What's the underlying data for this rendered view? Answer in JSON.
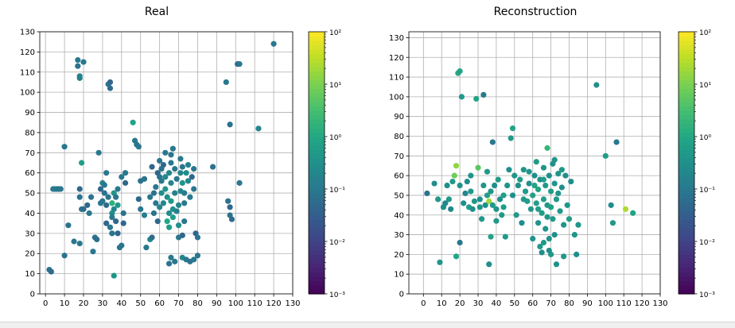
{
  "chart_data": [
    {
      "type": "scatter",
      "title": "Real",
      "xlabel": "",
      "ylabel": "",
      "xlim": [
        -3,
        130
      ],
      "ylim": [
        0,
        130
      ],
      "xticks": [
        0,
        10,
        20,
        30,
        40,
        50,
        60,
        70,
        80,
        90,
        100,
        110,
        120,
        130
      ],
      "yticks": [
        0,
        10,
        20,
        30,
        40,
        50,
        60,
        70,
        80,
        90,
        100,
        110,
        120,
        130
      ],
      "grid": true,
      "colorbar": {
        "scale": "log",
        "min": 0.001,
        "max": 100,
        "ticks": [
          "10⁻³",
          "10⁻²",
          "10⁻¹",
          "10⁰",
          "10¹",
          "10²"
        ]
      },
      "points": [
        [
          2,
          12,
          0.08
        ],
        [
          3,
          11,
          0.06
        ],
        [
          4,
          52,
          0.1
        ],
        [
          5,
          52,
          0.12
        ],
        [
          6,
          52,
          0.1
        ],
        [
          7,
          52,
          0.08
        ],
        [
          8,
          52,
          0.1
        ],
        [
          10,
          73,
          0.1
        ],
        [
          10,
          19,
          0.08
        ],
        [
          12,
          34,
          0.08
        ],
        [
          15,
          26,
          0.1
        ],
        [
          17,
          116,
          0.1
        ],
        [
          17,
          113,
          0.08
        ],
        [
          18,
          108,
          0.2
        ],
        [
          18,
          107,
          0.15
        ],
        [
          20,
          115,
          0.1
        ],
        [
          18,
          52,
          0.05
        ],
        [
          18,
          48,
          0.08
        ],
        [
          19,
          42,
          0.1
        ],
        [
          19,
          65,
          0.6
        ],
        [
          18,
          25,
          0.1
        ],
        [
          20,
          42,
          0.06
        ],
        [
          22,
          44,
          0.05
        ],
        [
          23,
          40,
          0.1
        ],
        [
          24,
          48,
          0.08
        ],
        [
          25,
          21,
          0.1
        ],
        [
          26,
          28,
          0.08
        ],
        [
          27,
          27,
          0.06
        ],
        [
          28,
          70,
          0.1
        ],
        [
          29,
          52,
          0.05
        ],
        [
          29,
          45,
          0.1
        ],
        [
          30,
          46,
          0.08
        ],
        [
          30,
          55,
          0.15
        ],
        [
          31,
          54,
          0.1
        ],
        [
          31,
          50,
          0.08
        ],
        [
          32,
          44,
          0.05
        ],
        [
          32,
          60,
          0.1
        ],
        [
          32,
          35,
          0.05
        ],
        [
          33,
          48,
          0.08
        ],
        [
          33,
          104,
          0.08
        ],
        [
          34,
          105,
          0.05
        ],
        [
          34,
          102,
          0.06
        ],
        [
          34,
          33,
          0.1
        ],
        [
          35,
          45,
          1.5
        ],
        [
          35,
          40,
          0.3
        ],
        [
          35,
          38,
          0.1
        ],
        [
          36,
          50,
          0.4
        ],
        [
          36,
          42,
          0.2
        ],
        [
          37,
          48,
          0.1
        ],
        [
          37,
          36,
          0.05
        ],
        [
          38,
          44,
          0.5
        ],
        [
          38,
          52,
          0.1
        ],
        [
          38,
          30,
          0.05
        ],
        [
          35,
          30,
          0.08
        ],
        [
          36,
          9,
          0.4
        ],
        [
          40,
          24,
          0.1
        ],
        [
          39,
          23,
          0.08
        ],
        [
          40,
          58,
          0.1
        ],
        [
          42,
          55,
          0.05
        ],
        [
          42,
          60,
          0.1
        ],
        [
          41,
          40,
          0.08
        ],
        [
          41,
          35,
          0.05
        ],
        [
          46,
          85,
          0.8
        ],
        [
          47,
          76,
          0.1
        ],
        [
          48,
          74,
          0.08
        ],
        [
          49,
          73,
          0.1
        ],
        [
          49,
          47,
          0.05
        ],
        [
          50,
          42,
          0.1
        ],
        [
          50,
          56,
          0.08
        ],
        [
          52,
          39,
          0.15
        ],
        [
          52,
          57,
          0.08
        ],
        [
          53,
          23,
          0.1
        ],
        [
          55,
          48,
          0.1
        ],
        [
          55,
          27,
          0.2
        ],
        [
          56,
          28,
          0.06
        ],
        [
          57,
          50,
          0.08
        ],
        [
          58,
          53,
          0.1
        ],
        [
          59,
          60,
          0.05
        ],
        [
          60,
          66,
          0.1
        ],
        [
          60,
          58,
          0.08
        ],
        [
          61,
          50,
          0.3
        ],
        [
          61,
          56,
          0.1
        ],
        [
          62,
          45,
          0.2
        ],
        [
          62,
          64,
          0.05
        ],
        [
          63,
          70,
          0.1
        ],
        [
          63,
          52,
          0.4
        ],
        [
          64,
          48,
          0.3
        ],
        [
          64,
          36,
          1.0
        ],
        [
          65,
          33,
          0.6
        ],
        [
          65,
          40,
          0.3
        ],
        [
          65,
          60,
          0.2
        ],
        [
          66,
          55,
          0.2
        ],
        [
          66,
          65,
          0.1
        ],
        [
          66,
          46,
          0.5
        ],
        [
          67,
          72,
          0.1
        ],
        [
          67,
          42,
          0.3
        ],
        [
          68,
          50,
          0.15
        ],
        [
          68,
          62,
          0.1
        ],
        [
          69,
          57,
          0.1
        ],
        [
          70,
          44,
          0.2
        ],
        [
          70,
          34,
          0.3
        ],
        [
          70,
          28,
          0.1
        ],
        [
          71,
          60,
          0.2
        ],
        [
          71,
          67,
          0.1
        ],
        [
          72,
          55,
          0.4
        ],
        [
          72,
          63,
          0.1
        ],
        [
          73,
          50,
          0.1
        ],
        [
          74,
          60,
          0.3
        ],
        [
          75,
          64,
          0.15
        ],
        [
          75,
          56,
          0.2
        ],
        [
          76,
          48,
          0.1
        ],
        [
          77,
          58,
          0.05
        ],
        [
          78,
          52,
          0.1
        ],
        [
          78,
          62,
          0.1
        ],
        [
          79,
          30,
          0.05
        ],
        [
          80,
          28,
          0.08
        ],
        [
          73,
          36,
          0.1
        ],
        [
          72,
          29,
          0.05
        ],
        [
          68,
          16,
          0.1
        ],
        [
          65,
          15,
          0.08
        ],
        [
          66,
          18,
          0.1
        ],
        [
          72,
          18,
          0.2
        ],
        [
          74,
          17,
          0.1
        ],
        [
          76,
          16,
          0.08
        ],
        [
          78,
          17,
          0.1
        ],
        [
          80,
          19,
          0.1
        ],
        [
          88,
          63,
          0.08
        ],
        [
          95,
          105,
          0.1
        ],
        [
          97,
          84,
          0.08
        ],
        [
          96,
          46,
          0.08
        ],
        [
          97,
          43,
          0.05
        ],
        [
          97,
          39,
          0.08
        ],
        [
          98,
          37,
          0.06
        ],
        [
          101,
          114,
          0.05
        ],
        [
          102,
          114,
          0.1
        ],
        [
          102,
          55,
          0.1
        ],
        [
          112,
          82,
          0.2
        ],
        [
          120,
          124,
          0.1
        ],
        [
          56,
          63,
          0.05
        ],
        [
          57,
          40,
          0.08
        ],
        [
          58,
          45,
          0.1
        ],
        [
          59,
          36,
          0.05
        ],
        [
          60,
          43,
          0.2
        ],
        [
          67,
          38,
          0.6
        ],
        [
          69,
          41,
          0.15
        ],
        [
          63,
          58,
          0.2
        ],
        [
          71,
          51,
          0.2
        ],
        [
          73,
          45,
          0.1
        ],
        [
          61,
          62,
          0.08
        ],
        [
          66,
          69,
          0.1
        ]
      ]
    },
    {
      "type": "scatter",
      "title": "Reconstruction",
      "xlabel": "",
      "ylabel": "",
      "xlim": [
        -8,
        130
      ],
      "ylim": [
        0,
        133
      ],
      "xticks": [
        0,
        10,
        20,
        30,
        40,
        50,
        60,
        70,
        80,
        90,
        100,
        110,
        120,
        130
      ],
      "yticks": [
        0,
        10,
        20,
        30,
        40,
        50,
        60,
        70,
        80,
        90,
        100,
        110,
        120,
        130
      ],
      "grid": true,
      "colorbar": {
        "scale": "log",
        "min": 0.001,
        "max": 100,
        "ticks": [
          "10⁻³",
          "10⁻²",
          "10⁻¹",
          "10⁰",
          "10¹",
          "10²"
        ]
      },
      "points": [
        [
          2,
          51,
          0.08
        ],
        [
          6,
          56,
          0.3
        ],
        [
          8,
          48,
          0.5
        ],
        [
          9,
          16,
          0.4
        ],
        [
          11,
          44,
          0.3
        ],
        [
          12,
          46,
          0.2
        ],
        [
          13,
          55,
          0.3
        ],
        [
          14,
          48,
          0.5
        ],
        [
          15,
          43,
          0.2
        ],
        [
          16,
          57,
          0.5
        ],
        [
          17,
          60,
          8.0
        ],
        [
          18,
          65,
          15.0
        ],
        [
          18,
          19,
          1.0
        ],
        [
          19,
          112,
          1.0
        ],
        [
          20,
          113,
          0.8
        ],
        [
          20,
          26,
          0.1
        ],
        [
          20,
          55,
          0.4
        ],
        [
          21,
          100,
          0.5
        ],
        [
          22,
          46,
          0.3
        ],
        [
          23,
          51,
          0.2
        ],
        [
          24,
          57,
          0.3
        ],
        [
          25,
          44,
          0.6
        ],
        [
          26,
          60,
          0.4
        ],
        [
          27,
          43,
          0.3
        ],
        [
          28,
          47,
          0.5
        ],
        [
          29,
          99,
          0.8
        ],
        [
          30,
          64,
          5.0
        ],
        [
          31,
          48,
          0.3
        ],
        [
          32,
          38,
          0.5
        ],
        [
          33,
          101,
          0.1
        ],
        [
          33,
          55,
          0.4
        ],
        [
          34,
          45,
          0.3
        ],
        [
          35,
          50,
          0.6
        ],
        [
          36,
          47,
          20.0
        ],
        [
          36,
          15,
          0.3
        ],
        [
          37,
          29,
          0.8
        ],
        [
          37,
          52,
          0.4
        ],
        [
          38,
          77,
          0.1
        ],
        [
          38,
          45,
          0.5
        ],
        [
          39,
          55,
          0.3
        ],
        [
          40,
          43,
          0.4
        ],
        [
          41,
          58,
          0.6
        ],
        [
          42,
          48,
          0.3
        ],
        [
          43,
          40,
          0.5
        ],
        [
          44,
          50,
          0.7
        ],
        [
          45,
          29,
          0.5
        ],
        [
          46,
          55,
          0.4
        ],
        [
          47,
          63,
          0.3
        ],
        [
          48,
          79,
          0.5
        ],
        [
          49,
          84,
          0.8
        ],
        [
          49,
          50,
          0.3
        ],
        [
          50,
          60,
          0.4
        ],
        [
          51,
          40,
          0.5
        ],
        [
          52,
          55,
          0.3
        ],
        [
          53,
          58,
          0.6
        ],
        [
          54,
          36,
          0.3
        ],
        [
          55,
          63,
          0.4
        ],
        [
          56,
          52,
          0.5
        ],
        [
          57,
          47,
          0.6
        ],
        [
          58,
          56,
          0.3
        ],
        [
          59,
          43,
          0.5
        ],
        [
          60,
          50,
          0.7
        ],
        [
          60,
          28,
          0.4
        ],
        [
          61,
          60,
          0.3
        ],
        [
          62,
          46,
          0.6
        ],
        [
          63,
          53,
          0.8
        ],
        [
          63,
          36,
          0.4
        ],
        [
          64,
          58,
          0.3
        ],
        [
          64,
          24,
          0.5
        ],
        [
          65,
          41,
          0.6
        ],
        [
          65,
          21,
          0.3
        ],
        [
          66,
          64,
          0.4
        ],
        [
          66,
          48,
          0.7
        ],
        [
          67,
          55,
          0.5
        ],
        [
          67,
          33,
          0.4
        ],
        [
          68,
          74,
          2.0
        ],
        [
          68,
          45,
          0.5
        ],
        [
          69,
          60,
          0.3
        ],
        [
          69,
          28,
          0.4
        ],
        [
          70,
          52,
          0.6
        ],
        [
          70,
          20,
          0.5
        ],
        [
          71,
          66,
          0.3
        ],
        [
          71,
          38,
          0.5
        ],
        [
          72,
          56,
          0.4
        ],
        [
          72,
          30,
          0.3
        ],
        [
          73,
          48,
          0.5
        ],
        [
          73,
          15,
          0.3
        ],
        [
          74,
          61,
          0.4
        ],
        [
          75,
          42,
          0.5
        ],
        [
          76,
          54,
          0.3
        ],
        [
          77,
          35,
          0.4
        ],
        [
          77,
          19,
          0.5
        ],
        [
          78,
          60,
          0.3
        ],
        [
          79,
          45,
          0.4
        ],
        [
          80,
          38,
          0.6
        ],
        [
          81,
          57,
          0.3
        ],
        [
          83,
          30,
          0.4
        ],
        [
          84,
          20,
          0.3
        ],
        [
          85,
          35,
          0.4
        ],
        [
          95,
          106,
          0.3
        ],
        [
          100,
          70,
          0.6
        ],
        [
          103,
          45,
          0.3
        ],
        [
          104,
          36,
          0.5
        ],
        [
          106,
          77,
          0.1
        ],
        [
          111,
          43,
          25.0
        ],
        [
          115,
          41,
          0.8
        ],
        [
          58,
          62,
          0.4
        ],
        [
          62,
          67,
          0.5
        ],
        [
          66,
          58,
          0.6
        ],
        [
          68,
          39,
          0.5
        ],
        [
          74,
          51,
          0.4
        ],
        [
          63,
          43,
          0.6
        ],
        [
          66,
          26,
          0.5
        ],
        [
          70,
          44,
          0.7
        ],
        [
          61,
          55,
          0.8
        ],
        [
          55,
          48,
          0.5
        ],
        [
          44,
          44,
          0.6
        ],
        [
          40,
          37,
          0.5
        ],
        [
          31,
          44,
          0.4
        ],
        [
          26,
          52,
          0.5
        ],
        [
          35,
          62,
          0.5
        ],
        [
          72,
          68,
          0.4
        ],
        [
          76,
          63,
          0.5
        ],
        [
          69,
          22,
          0.3
        ]
      ]
    }
  ]
}
